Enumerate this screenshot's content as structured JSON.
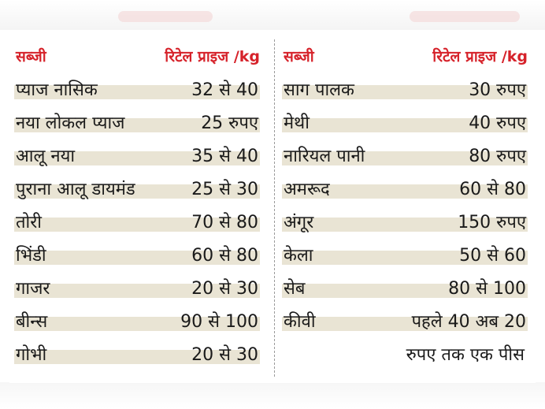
{
  "table": {
    "header": {
      "item": "सब्जी",
      "price": "रिटेल प्राइज /kg"
    },
    "left_rows": [
      {
        "name": "प्याज नासिक",
        "price": "32 से 40"
      },
      {
        "name": "नया लोकल प्याज",
        "price": "25 रुपए"
      },
      {
        "name": "आलू नया",
        "price": "35 से 40"
      },
      {
        "name": "पुराना आलू डायमंड",
        "price": "25 से 30"
      },
      {
        "name": "तोरी",
        "price": "70 से 80"
      },
      {
        "name": "भिंडी",
        "price": "60 से 80"
      },
      {
        "name": "गाजर",
        "price": "20 से 30"
      },
      {
        "name": "बीन्स",
        "price": "90 से 100"
      },
      {
        "name": "गोभी",
        "price": "20 से 30"
      }
    ],
    "right_rows": [
      {
        "name": "साग पालक",
        "price": "30 रुपए"
      },
      {
        "name": "मेथी",
        "price": "40 रुपए"
      },
      {
        "name": "नारियल पानी",
        "price": "80 रुपए"
      },
      {
        "name": "अमरूद",
        "price": "60 से 80"
      },
      {
        "name": "अंगूर",
        "price": "150 रुपए"
      },
      {
        "name": "केला",
        "price": "50 से 60"
      },
      {
        "name": "सेब",
        "price": "80 से 100"
      },
      {
        "name": "कीवी",
        "price": "पहले 40 अब 20"
      }
    ],
    "right_note": "रुपए तक एक पीस"
  },
  "colors": {
    "header_red": "#d6222a",
    "row_band": "#e9e4d4"
  }
}
